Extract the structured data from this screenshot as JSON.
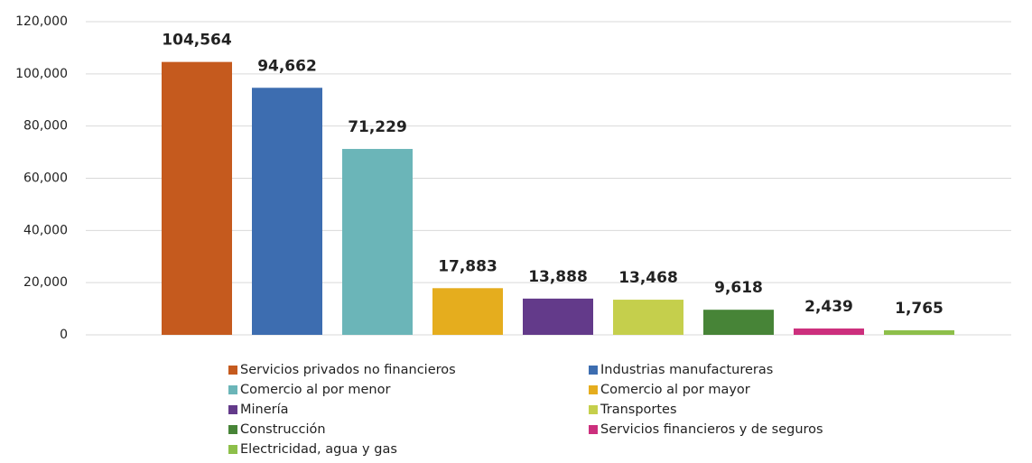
{
  "chart_data": {
    "type": "bar",
    "categories": [
      "Servicios privados no financieros",
      "Industrias manufactureras",
      "Comercio al por menor",
      "Comercio al por mayor",
      "Minería",
      "Transportes",
      "Construcción",
      "Servicios financieros y de seguros",
      "Electricidad, agua y gas"
    ],
    "values": [
      104564,
      94662,
      71229,
      17883,
      13888,
      13468,
      9618,
      2439,
      1765
    ],
    "value_labels": [
      "104,564",
      "94,662",
      "71,229",
      "17,883",
      "13,888",
      "13,468",
      "9,618",
      "2,439",
      "1,765"
    ],
    "colors": [
      "#c55a1e",
      "#3d6db0",
      "#6bb5b8",
      "#e5ad1e",
      "#633a8a",
      "#c5cf4c",
      "#478437",
      "#cc2f7d",
      "#8dbf4a"
    ],
    "ylim": [
      0,
      120000
    ],
    "yticks": [
      0,
      {
        "value": 20000,
        "label": "20,000"
      },
      {
        "value": 40000,
        "label": "40,000"
      },
      {
        "value": 60000,
        "label": "60,000"
      },
      {
        "value": 80000,
        "label": "80,000"
      },
      {
        "value": 100000,
        "label": "100,000"
      },
      {
        "value": 120000,
        "label": "120,000"
      }
    ],
    "grid": true
  }
}
